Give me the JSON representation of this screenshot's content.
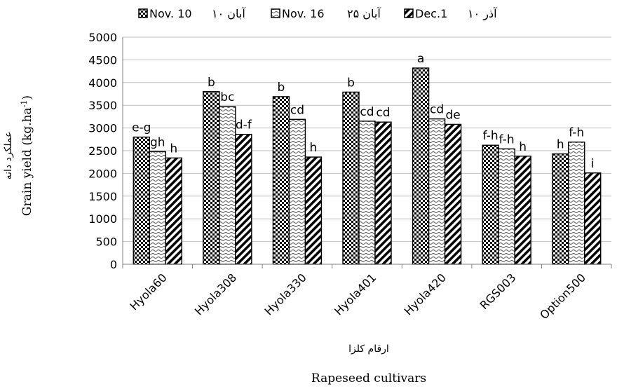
{
  "chart_data": {
    "type": "bar",
    "categories": [
      "Hyola60",
      "Hyola308",
      "Hyola330",
      "Hyola401",
      "Hyola420",
      "RGS003",
      "Option500"
    ],
    "series": [
      {
        "name": "Nov. 10",
        "name_fa": "۱۰ آبان",
        "pattern": "checker",
        "values": [
          2800,
          3800,
          3690,
          3790,
          4320,
          2620,
          2430
        ],
        "labels": [
          "e-g",
          "b",
          "b",
          "b",
          "a",
          "f-h",
          "h"
        ]
      },
      {
        "name": "Nov. 16",
        "name_fa": "۲۵ آبان",
        "pattern": "wave",
        "values": [
          2480,
          3470,
          3190,
          3150,
          3200,
          2540,
          2690
        ],
        "labels": [
          "gh",
          "bc",
          "cd",
          "cd",
          "cd",
          "f-h",
          "f-h"
        ]
      },
      {
        "name": "Dec.1",
        "name_fa": "۱۰ آذر",
        "pattern": "diagonal",
        "values": [
          2340,
          2860,
          2360,
          3130,
          3080,
          2380,
          2010
        ],
        "labels": [
          "h",
          "d-f",
          "h",
          "cd",
          "de",
          "h",
          "i"
        ]
      }
    ],
    "ylim": [
      0,
      5000
    ],
    "yticks": [
      0,
      500,
      1000,
      1500,
      2000,
      2500,
      3000,
      3500,
      4000,
      4500,
      5000
    ],
    "ylabel_en": "Grain yield (kg.ha",
    "ylabel_en_sup": "-1",
    "ylabel_en_end": ")",
    "ylabel_fa": "عملکرد دانه",
    "xlabel_en": "Rapeseed cultivars",
    "xlabel_fa": "ارقام کلزا",
    "grid": true,
    "legend_position": "top"
  }
}
